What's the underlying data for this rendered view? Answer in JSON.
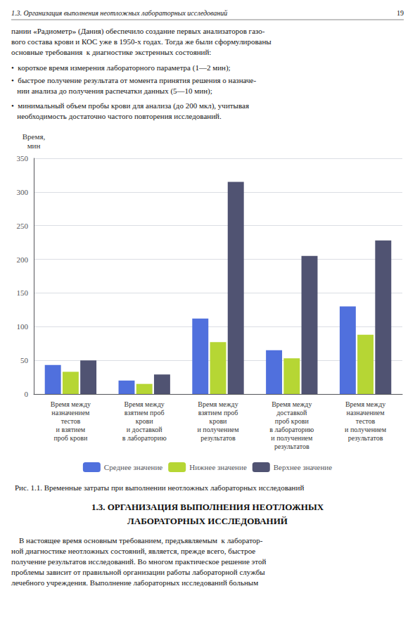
{
  "chart_data": {
    "type": "bar",
    "title": "Рис. 1.1. Временные затраты при выполнении неотложных лабораторных исследований",
    "categories": [
      "Время между\nназначением\nтестов\nи взятием\nпроб крови",
      "Время между\nвзятием проб\nкрови\nи доставкой\nв лабораторию",
      "Время между\nвзятием проб\nкрови\nи получением\nрезультатов",
      "Время между\nдоставкой\nпроб крови\nв лабораторию\nи получением\nрезультатов",
      "Время между\nназначением\nтестов\nи получением\nрезультатов"
    ],
    "series": [
      {
        "name": "Среднее значение",
        "values": [
          43,
          20,
          112,
          65,
          130
        ]
      },
      {
        "name": "Нижнее значение",
        "values": [
          33,
          15,
          77,
          53,
          88
        ]
      },
      {
        "name": "Верхнее значение",
        "values": [
          50,
          29,
          315,
          205,
          228
        ]
      }
    ],
    "ylabel": "Время,\nмин",
    "ylim": [
      0,
      350
    ],
    "yticks": [
      0,
      50,
      100,
      150,
      200,
      250,
      300,
      350
    ],
    "grid": true,
    "legend": "bottom",
    "annotations": [
      "1.3. Организация выполнения неотложных лабораторных исследований",
      "19",
      "пании «Радиометр» (Дания) обеспечило создание первых анализаторов газо-\nвого состава крови и КОС уже в 1950-х годах. Тогда же были сформулированы\nосновные требования  к диагностике экстренных состояний:",
      "•  короткое время измерения лабораторного параметра (1—2 мин);",
      "•  быстрое получение результата от момента принятия решения о назначе-\n   нии анализа до получения распечатки данных (5—10 мин);",
      "•  минимальный объем пробы крови для анализа (до 200 мкл), учитывая\n   необходимость достаточно частого повторения исследований.",
      "1.3. ОРГАНИЗАЦИЯ ВЫПОЛНЕНИЯ НЕОТЛОЖНЫХ",
      "ЛАБОРАТОРНЫХ ИССЛЕДОВАНИЙ",
      "    В настоящее время основным требованием, предъявляемым  к лаборатор-\nной диагностике неотложных состояний, является, прежде всего, быстрое\nполучение результатов исследований. Во многом практическое решение этой\nпроблемы зависит от правильной организации работы лабораторной службы\nлечебного учреждения. Выполнение лабораторных исследований больным"
    ]
  }
}
